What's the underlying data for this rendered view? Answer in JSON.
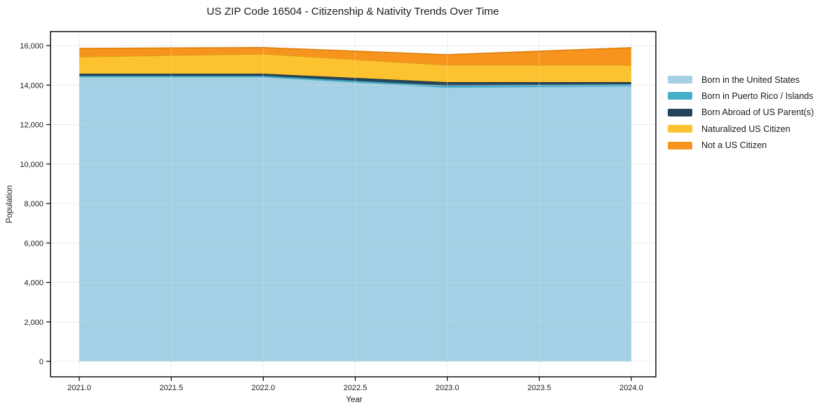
{
  "chart_data": {
    "type": "area",
    "stacked": true,
    "title": "US ZIP Code 16504 - Citizenship & Nativity Trends Over Time",
    "xlabel": "Year",
    "ylabel": "Population",
    "x": [
      2021,
      2022,
      2023,
      2024
    ],
    "series": [
      {
        "name": "Born in the United States",
        "color": "#a3d0e4",
        "edge": "#8fc2da",
        "values": [
          14400,
          14400,
          13870,
          13940
        ]
      },
      {
        "name": "Born in Puerto Rico / Islands",
        "color": "#46aec7",
        "edge": "#3b93a8",
        "values": [
          70,
          70,
          105,
          105
        ]
      },
      {
        "name": "Born Abroad of US Parent(s)",
        "color": "#25465a",
        "edge": "#1d3847",
        "values": [
          110,
          110,
          175,
          105
        ]
      },
      {
        "name": "Naturalized US Citizen",
        "color": "#fdc22f",
        "edge": "#d7a51c",
        "values": [
          850,
          1000,
          860,
          860
        ]
      },
      {
        "name": "Not a US Citizen",
        "color": "#f6941e",
        "edge": "#dd7f0e",
        "values": [
          430,
          320,
          530,
          885
        ]
      }
    ],
    "stack_totals": [
      15860,
      15900,
      15540,
      15895
    ],
    "x_ticks": [
      {
        "v": 2021.0,
        "label": "2021.0"
      },
      {
        "v": 2021.5,
        "label": "2021.5"
      },
      {
        "v": 2022.0,
        "label": "2022.0"
      },
      {
        "v": 2022.5,
        "label": "2022.5"
      },
      {
        "v": 2023.0,
        "label": "2023.0"
      },
      {
        "v": 2023.5,
        "label": "2023.5"
      },
      {
        "v": 2024.0,
        "label": "2024.0"
      }
    ],
    "y_ticks": [
      {
        "v": 0,
        "label": "0"
      },
      {
        "v": 2000,
        "label": "2,000"
      },
      {
        "v": 4000,
        "label": "4,000"
      },
      {
        "v": 6000,
        "label": "6,000"
      },
      {
        "v": 8000,
        "label": "8,000"
      },
      {
        "v": 10000,
        "label": "10,000"
      },
      {
        "v": 12000,
        "label": "12,000"
      },
      {
        "v": 14000,
        "label": "14,000"
      },
      {
        "v": 16000,
        "label": "16,000"
      }
    ],
    "xlim_data": [
      2021,
      2024
    ],
    "ylim": [
      0,
      16000
    ],
    "grid": true,
    "legend_position": "outside-right"
  }
}
